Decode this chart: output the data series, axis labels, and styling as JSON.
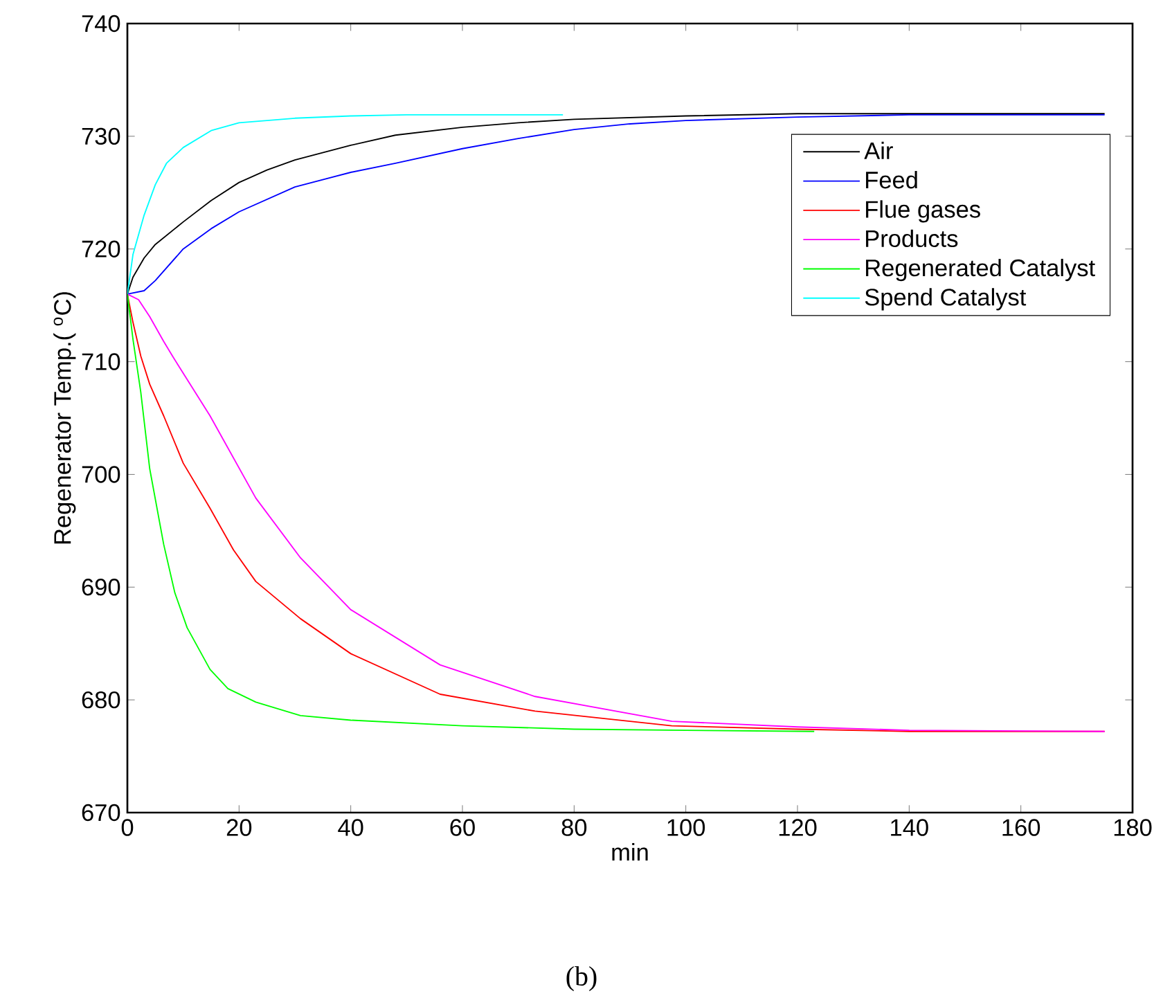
{
  "chart_data": {
    "type": "line",
    "xlabel": "min",
    "ylabel": "Regenerator Temp.( $^{o}$C)",
    "xlim": [
      0,
      180
    ],
    "ylim": [
      670,
      740
    ],
    "xticks": [
      0,
      20,
      40,
      60,
      80,
      100,
      120,
      140,
      160,
      180
    ],
    "yticks": [
      670,
      680,
      690,
      700,
      710,
      720,
      730,
      740
    ],
    "grid": false,
    "legend": "top right",
    "marker": "none",
    "line_style": "solid",
    "annotations": [
      "(b)"
    ],
    "series": [
      {
        "name": "Air",
        "color": "#000000",
        "x": [
          0,
          1,
          3,
          5,
          10,
          15,
          20,
          25,
          30,
          40,
          48,
          60,
          70,
          80,
          100,
          120,
          175
        ],
        "values": [
          716,
          717.5,
          719.2,
          720.4,
          722.4,
          724.3,
          725.9,
          727,
          727.9,
          729.2,
          730.1,
          730.8,
          731.2,
          731.5,
          731.8,
          732,
          732
        ]
      },
      {
        "name": "Feed",
        "color": "#0000ff",
        "x": [
          0,
          3,
          5,
          10,
          15,
          20,
          30,
          40,
          48,
          60,
          70,
          80,
          90,
          100,
          120,
          140,
          175
        ],
        "values": [
          716,
          716.3,
          717.2,
          720,
          721.8,
          723.3,
          725.5,
          726.8,
          727.6,
          728.9,
          729.8,
          730.6,
          731.1,
          731.4,
          731.7,
          731.9,
          731.9
        ]
      },
      {
        "name": "Flue gases",
        "color": "#ff0000",
        "x": [
          0,
          1,
          2.4,
          4,
          6.5,
          10,
          14.8,
          19,
          23,
          31,
          40,
          56,
          73,
          97.5,
          120,
          140,
          175
        ],
        "values": [
          716,
          713.5,
          710.5,
          708,
          705.2,
          701,
          697,
          693.3,
          690.5,
          687.2,
          684.1,
          680.5,
          679,
          677.7,
          677.4,
          677.2,
          677.2
        ]
      },
      {
        "name": "Products",
        "color": "#ff00ff",
        "x": [
          0,
          2,
          4,
          6.5,
          8.2,
          14.8,
          23,
          31,
          40,
          56,
          73,
          97.5,
          120,
          140,
          175
        ],
        "values": [
          716,
          715.5,
          714,
          711.8,
          710.4,
          705.2,
          697.9,
          692.6,
          688,
          683.1,
          680.3,
          678.1,
          677.6,
          677.3,
          677.2
        ]
      },
      {
        "name": "Regenerated Catalyst",
        "color": "#00ff00",
        "x": [
          0,
          1,
          2.4,
          4,
          6.5,
          8.5,
          10.7,
          14.8,
          18,
          23,
          31,
          40,
          60,
          80,
          100,
          123
        ],
        "values": [
          716,
          712,
          707.3,
          700.5,
          693.8,
          689.5,
          686.4,
          682.7,
          681,
          679.8,
          678.6,
          678.2,
          677.7,
          677.4,
          677.3,
          677.2
        ]
      },
      {
        "name": "Spend Catalyst",
        "color": "#00ffff",
        "x": [
          0,
          1,
          3,
          5,
          7,
          10,
          15,
          20,
          25,
          30,
          40,
          50,
          78
        ],
        "values": [
          716,
          719.5,
          723,
          725.7,
          727.6,
          729,
          730.5,
          731.2,
          731.4,
          731.6,
          731.8,
          731.9,
          731.9
        ]
      }
    ]
  }
}
